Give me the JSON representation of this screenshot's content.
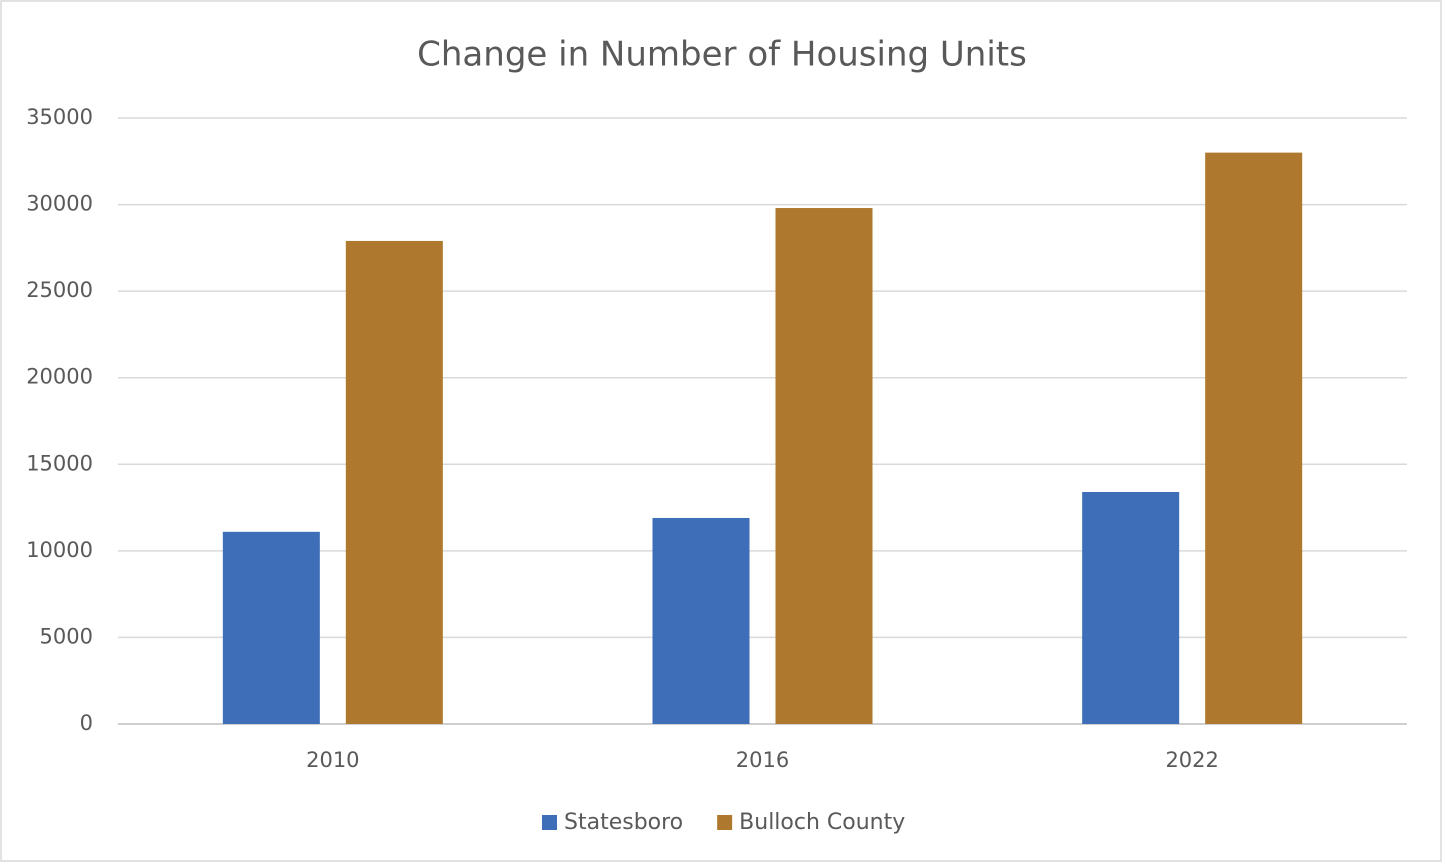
{
  "chart_data": {
    "type": "bar",
    "title": "Change in Number of Housing Units",
    "categories": [
      "2010",
      "2016",
      "2022"
    ],
    "series": [
      {
        "name": "Statesboro",
        "color": "#3d6eb7",
        "values": [
          11100,
          11900,
          13400
        ]
      },
      {
        "name": "Bulloch County",
        "color": "#ae792e",
        "values": [
          27900,
          29800,
          33000
        ]
      }
    ],
    "ylim": [
      0,
      35000
    ],
    "yticks": [
      0,
      5000,
      10000,
      15000,
      20000,
      25000,
      30000,
      35000
    ],
    "grid": true,
    "legend": "bottom"
  }
}
